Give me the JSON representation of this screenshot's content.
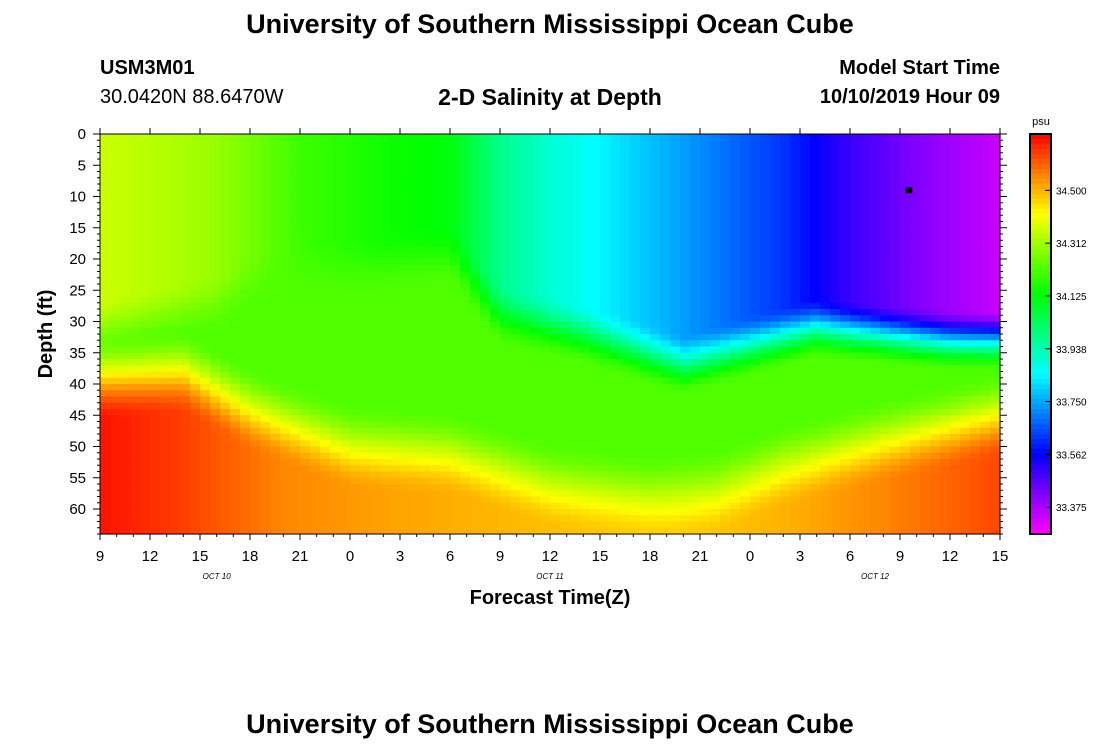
{
  "page": {
    "title_top": "University of Southern Mississippi Ocean Cube",
    "title_bottom": "University of Southern Mississippi Ocean Cube",
    "station_id": "USM3M01",
    "station_location": "30.0420N 88.6470W",
    "chart_title": "2-D Salinity at Depth",
    "model_start_label": "Model Start Time",
    "model_start_value": "10/10/2019 Hour 09"
  },
  "chart_data": {
    "type": "heatmap",
    "title": "2-D Salinity at Depth",
    "xlabel": "Forecast Time(Z)",
    "ylabel": "Depth (ft)",
    "x_start_hour": 9,
    "x_end_hour": 63,
    "x_tick_labels": [
      "9",
      "12",
      "15",
      "18",
      "21",
      "0",
      "3",
      "6",
      "9",
      "12",
      "15",
      "18",
      "21",
      "0",
      "3",
      "6",
      "9",
      "12",
      "15"
    ],
    "date_labels": [
      {
        "text": "OCT 10",
        "at_hour": 16
      },
      {
        "text": "OCT 11",
        "at_hour": 36
      },
      {
        "text": "OCT 12",
        "at_hour": 55.5
      }
    ],
    "ylim": [
      0,
      64
    ],
    "y_ticks": [
      0,
      5,
      10,
      15,
      20,
      25,
      30,
      35,
      40,
      45,
      50,
      55,
      60
    ],
    "colorbar": {
      "unit": "psu",
      "min": 33.28,
      "max": 34.7,
      "tick_labels": [
        "34.500",
        "34.312",
        "34.125",
        "33.938",
        "33.750",
        "33.562",
        "33.375"
      ],
      "tick_values": [
        34.5,
        34.3125,
        34.125,
        33.9375,
        33.75,
        33.5625,
        33.375
      ]
    },
    "surface_salinity": [
      {
        "hour": 9,
        "value": 34.36
      },
      {
        "hour": 13,
        "value": 34.33
      },
      {
        "hour": 16,
        "value": 34.3
      },
      {
        "hour": 21,
        "value": 34.2
      },
      {
        "hour": 26,
        "value": 34.15
      },
      {
        "hour": 30,
        "value": 34.12
      },
      {
        "hour": 33,
        "value": 33.98
      },
      {
        "hour": 36,
        "value": 33.9
      },
      {
        "hour": 40,
        "value": 33.82
      },
      {
        "hour": 44,
        "value": 33.74
      },
      {
        "hour": 50,
        "value": 33.62
      },
      {
        "hour": 54,
        "value": 33.5
      },
      {
        "hour": 58,
        "value": 33.42
      },
      {
        "hour": 63,
        "value": 33.34
      }
    ],
    "halocline_depth_ft": [
      {
        "hour": 9,
        "value": 30
      },
      {
        "hour": 16,
        "value": 26
      },
      {
        "hour": 20,
        "value": 20
      },
      {
        "hour": 25,
        "value": 20
      },
      {
        "hour": 30,
        "value": 18
      },
      {
        "hour": 33,
        "value": 28
      },
      {
        "hour": 38,
        "value": 31
      },
      {
        "hour": 44,
        "value": 36
      },
      {
        "hour": 48,
        "value": 33
      },
      {
        "hour": 52,
        "value": 30
      },
      {
        "hour": 56,
        "value": 31
      },
      {
        "hour": 60,
        "value": 32
      },
      {
        "hour": 63,
        "value": 32
      }
    ],
    "mid_salinity": 34.22,
    "deep_depth_ft": [
      {
        "hour": 9,
        "value": 38
      },
      {
        "hour": 14,
        "value": 37
      },
      {
        "hour": 18,
        "value": 43
      },
      {
        "hour": 24,
        "value": 49
      },
      {
        "hour": 30,
        "value": 50
      },
      {
        "hour": 36,
        "value": 55
      },
      {
        "hour": 42,
        "value": 57
      },
      {
        "hour": 46,
        "value": 56
      },
      {
        "hour": 50,
        "value": 52
      },
      {
        "hour": 56,
        "value": 48
      },
      {
        "hour": 63,
        "value": 44
      }
    ],
    "bottom_salinity": [
      {
        "hour": 9,
        "value": 34.68
      },
      {
        "hour": 14,
        "value": 34.63
      },
      {
        "hour": 20,
        "value": 34.55
      },
      {
        "hour": 26,
        "value": 34.52
      },
      {
        "hour": 32,
        "value": 34.5
      },
      {
        "hour": 38,
        "value": 34.48
      },
      {
        "hour": 44,
        "value": 34.47
      },
      {
        "hour": 50,
        "value": 34.5
      },
      {
        "hour": 56,
        "value": 34.55
      },
      {
        "hour": 63,
        "value": 34.62
      }
    ],
    "marker": {
      "hour": 57.5,
      "depth_ft": 9
    }
  }
}
